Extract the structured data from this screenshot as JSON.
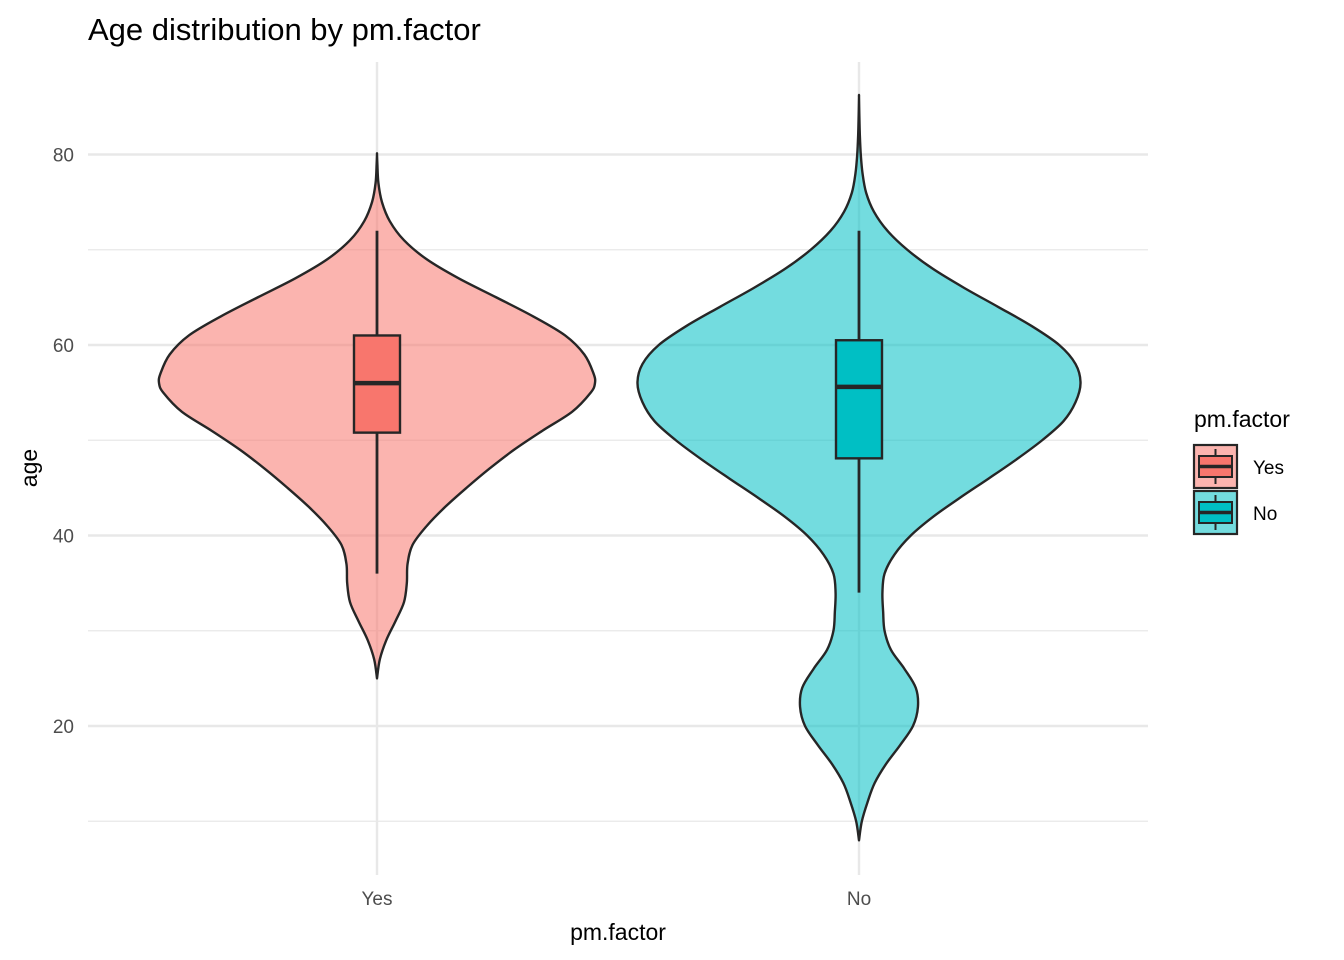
{
  "chart_data": {
    "type": "violin",
    "title": "Age distribution by pm.factor",
    "xlabel": "pm.factor",
    "ylabel": "age",
    "categories": [
      "Yes",
      "No"
    ],
    "ylim": [
      8,
      90
    ],
    "y_ticks": [
      20,
      40,
      60,
      80
    ],
    "y_tick_labels": [
      "20",
      "40",
      "60",
      "80"
    ],
    "grid": true,
    "legend": {
      "title": "pm.factor",
      "position": "right",
      "items": [
        "Yes",
        "No"
      ]
    },
    "colors": {
      "Yes": "#F8766D",
      "No": "#00BFC4",
      "outline": "#262626",
      "grid": "#e8e8e8"
    },
    "series": [
      {
        "name": "Yes",
        "violin": {
          "min": 25,
          "max": 80,
          "profile": [
            [
              25,
              0.0
            ],
            [
              27,
              0.04
            ],
            [
              29,
              0.13
            ],
            [
              31,
              0.26
            ],
            [
              33,
              0.38
            ],
            [
              35,
              0.42
            ],
            [
              37,
              0.43
            ],
            [
              39,
              0.5
            ],
            [
              41,
              0.7
            ],
            [
              43,
              0.96
            ],
            [
              45,
              1.26
            ],
            [
              47,
              1.58
            ],
            [
              49,
              1.93
            ],
            [
              51,
              2.33
            ],
            [
              53,
              2.75
            ],
            [
              55,
              3.01
            ],
            [
              56,
              3.07
            ],
            [
              57,
              3.05
            ],
            [
              59,
              2.92
            ],
            [
              61,
              2.65
            ],
            [
              63,
              2.2
            ],
            [
              65,
              1.68
            ],
            [
              67,
              1.15
            ],
            [
              69,
              0.7
            ],
            [
              71,
              0.38
            ],
            [
              73,
              0.18
            ],
            [
              75,
              0.07
            ],
            [
              77,
              0.02
            ],
            [
              79,
              0.005
            ],
            [
              80,
              0.0
            ]
          ]
        },
        "box": {
          "lower_whisker": 36,
          "q1": 50.8,
          "median": 56,
          "q3": 61,
          "upper_whisker": 72
        }
      },
      {
        "name": "No",
        "violin": {
          "min": 8,
          "max": 86,
          "profile": [
            [
              8,
              0.0
            ],
            [
              10,
              0.04
            ],
            [
              12,
              0.12
            ],
            [
              14,
              0.22
            ],
            [
              16,
              0.38
            ],
            [
              18,
              0.58
            ],
            [
              20,
              0.76
            ],
            [
              22,
              0.83
            ],
            [
              24,
              0.8
            ],
            [
              26,
              0.64
            ],
            [
              28,
              0.45
            ],
            [
              30,
              0.36
            ],
            [
              32,
              0.34
            ],
            [
              34,
              0.33
            ],
            [
              36,
              0.36
            ],
            [
              38,
              0.5
            ],
            [
              40,
              0.73
            ],
            [
              42,
              1.05
            ],
            [
              44,
              1.43
            ],
            [
              46,
              1.83
            ],
            [
              48,
              2.22
            ],
            [
              50,
              2.58
            ],
            [
              52,
              2.88
            ],
            [
              54,
              3.05
            ],
            [
              56,
              3.12
            ],
            [
              58,
              3.05
            ],
            [
              60,
              2.82
            ],
            [
              62,
              2.43
            ],
            [
              64,
              1.96
            ],
            [
              66,
              1.48
            ],
            [
              68,
              1.04
            ],
            [
              70,
              0.68
            ],
            [
              72,
              0.4
            ],
            [
              74,
              0.21
            ],
            [
              76,
              0.1
            ],
            [
              78,
              0.05
            ],
            [
              80,
              0.025
            ],
            [
              82,
              0.012
            ],
            [
              84,
              0.005
            ],
            [
              86,
              0.0
            ]
          ]
        },
        "box": {
          "lower_whisker": 34,
          "q1": 48.1,
          "median": 55.6,
          "q3": 60.5,
          "upper_whisker": 72
        }
      }
    ]
  }
}
